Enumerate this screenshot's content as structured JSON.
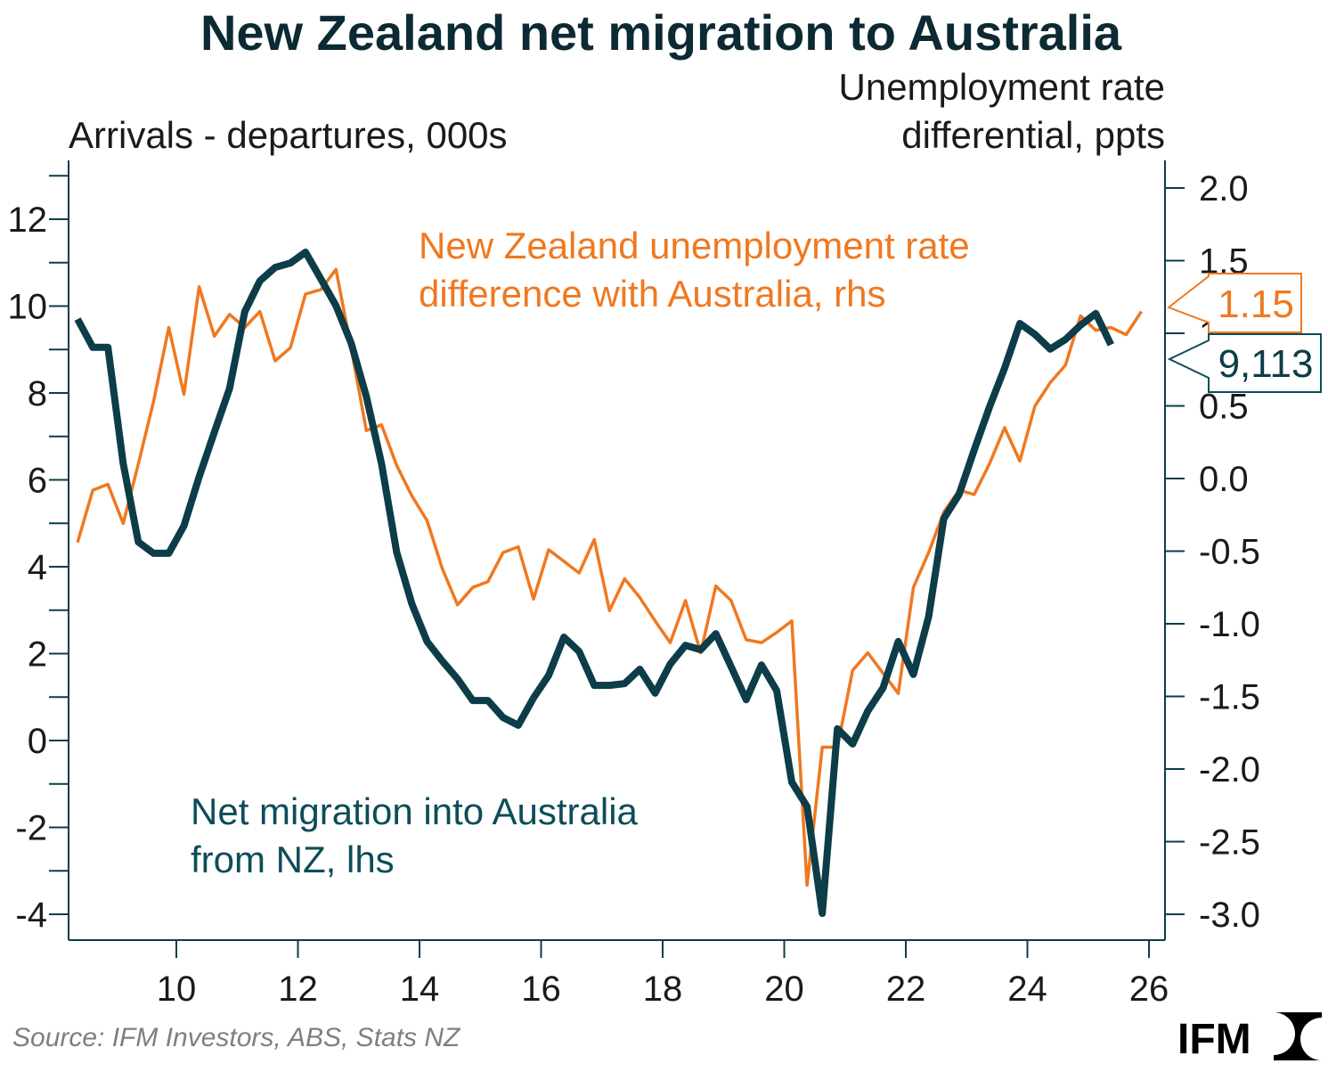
{
  "chart_data": {
    "type": "line",
    "title": "New Zealand net migration to Australia",
    "ylabel_left": "Arrivals - departures, 000s",
    "ylabel_right_line1": "Unemployment rate",
    "ylabel_right_line2": "differential, ppts",
    "xlim": [
      8.2,
      26.3
    ],
    "ylim_left": [
      -4.5,
      13.5
    ],
    "ylim_right": [
      -3.15,
      2.2
    ],
    "x_ticks": [
      "10",
      "12",
      "14",
      "16",
      "18",
      "20",
      "22",
      "24",
      "26"
    ],
    "x_tick_values": [
      10,
      12,
      14,
      16,
      18,
      20,
      22,
      24,
      26
    ],
    "left_ticks": [
      "12",
      "10",
      "8",
      "6",
      "4",
      "2",
      "0",
      "-2",
      "-4"
    ],
    "left_tick_values": [
      12,
      10,
      8,
      6,
      4,
      2,
      0,
      -2,
      -4
    ],
    "right_ticks": [
      "2.0",
      "1.5",
      "1.0",
      "0.5",
      "0.0",
      "-0.5",
      "-1.0",
      "-1.5",
      "-2.0",
      "-2.5",
      "-3.0"
    ],
    "right_tick_values": [
      2.0,
      1.5,
      1.0,
      0.5,
      0.0,
      -0.5,
      -1.0,
      -1.5,
      -2.0,
      -2.5,
      -3.0
    ],
    "grid": false,
    "series": [
      {
        "name_line1": "Net migration into Australia",
        "name_line2": "from NZ, lhs",
        "axis": "left",
        "color": "#0c3d48",
        "x_start": 8.375,
        "x_step": 0.25,
        "values": [
          9.7,
          9.05,
          9.05,
          6.38,
          4.57,
          4.31,
          4.31,
          4.94,
          6.07,
          7.1,
          8.1,
          9.87,
          10.58,
          10.89,
          10.99,
          11.24,
          10.63,
          10.01,
          9.15,
          7.92,
          6.38,
          4.33,
          3.14,
          2.28,
          1.83,
          1.42,
          0.92,
          0.92,
          0.53,
          0.35,
          0.98,
          1.5,
          2.38,
          2.05,
          1.27,
          1.27,
          1.31,
          1.64,
          1.09,
          1.76,
          2.19,
          2.09,
          2.46,
          1.7,
          0.94,
          1.74,
          1.15,
          -0.96,
          -1.52,
          -3.98,
          0.27,
          -0.08,
          0.68,
          1.21,
          2.28,
          1.52,
          2.85,
          5.11,
          5.66,
          6.69,
          7.67,
          8.57,
          9.6,
          9.35,
          9.01,
          9.23,
          9.56,
          9.83,
          9.11
        ],
        "last_label": "9,113"
      },
      {
        "name_line1": "New Zealand unemployment rate",
        "name_line2": "difference with Australia, rhs",
        "axis": "right",
        "color": "#f07820",
        "x_start": 8.375,
        "x_step": 0.25,
        "values": [
          -0.44,
          -0.08,
          -0.04,
          -0.31,
          0.1,
          0.53,
          1.04,
          0.58,
          1.32,
          0.98,
          1.13,
          1.04,
          1.15,
          0.81,
          0.9,
          1.27,
          1.3,
          1.44,
          0.9,
          0.33,
          0.37,
          0.09,
          -0.12,
          -0.29,
          -0.62,
          -0.87,
          -0.75,
          -0.71,
          -0.51,
          -0.47,
          -0.83,
          -0.49,
          -0.57,
          -0.65,
          -0.42,
          -0.91,
          -0.69,
          -0.82,
          -0.98,
          -1.13,
          -0.84,
          -1.2,
          -0.74,
          -0.84,
          -1.11,
          -1.13,
          -1.06,
          -0.98,
          -2.8,
          -1.85,
          -1.85,
          -1.32,
          -1.2,
          -1.34,
          -1.48,
          -0.75,
          -0.51,
          -0.23,
          -0.08,
          -0.11,
          0.1,
          0.35,
          0.12,
          0.5,
          0.66,
          0.78,
          1.12,
          1.02,
          1.04,
          0.99,
          1.15
        ],
        "last_label": "1.15"
      }
    ]
  },
  "footer": {
    "source": "Source: IFM Investors, ABS, Stats NZ",
    "logo_text": "IFM"
  },
  "colors": {
    "axis": "#0c3d48",
    "text": "#1a1a1a",
    "source": "#7f7f7f"
  }
}
